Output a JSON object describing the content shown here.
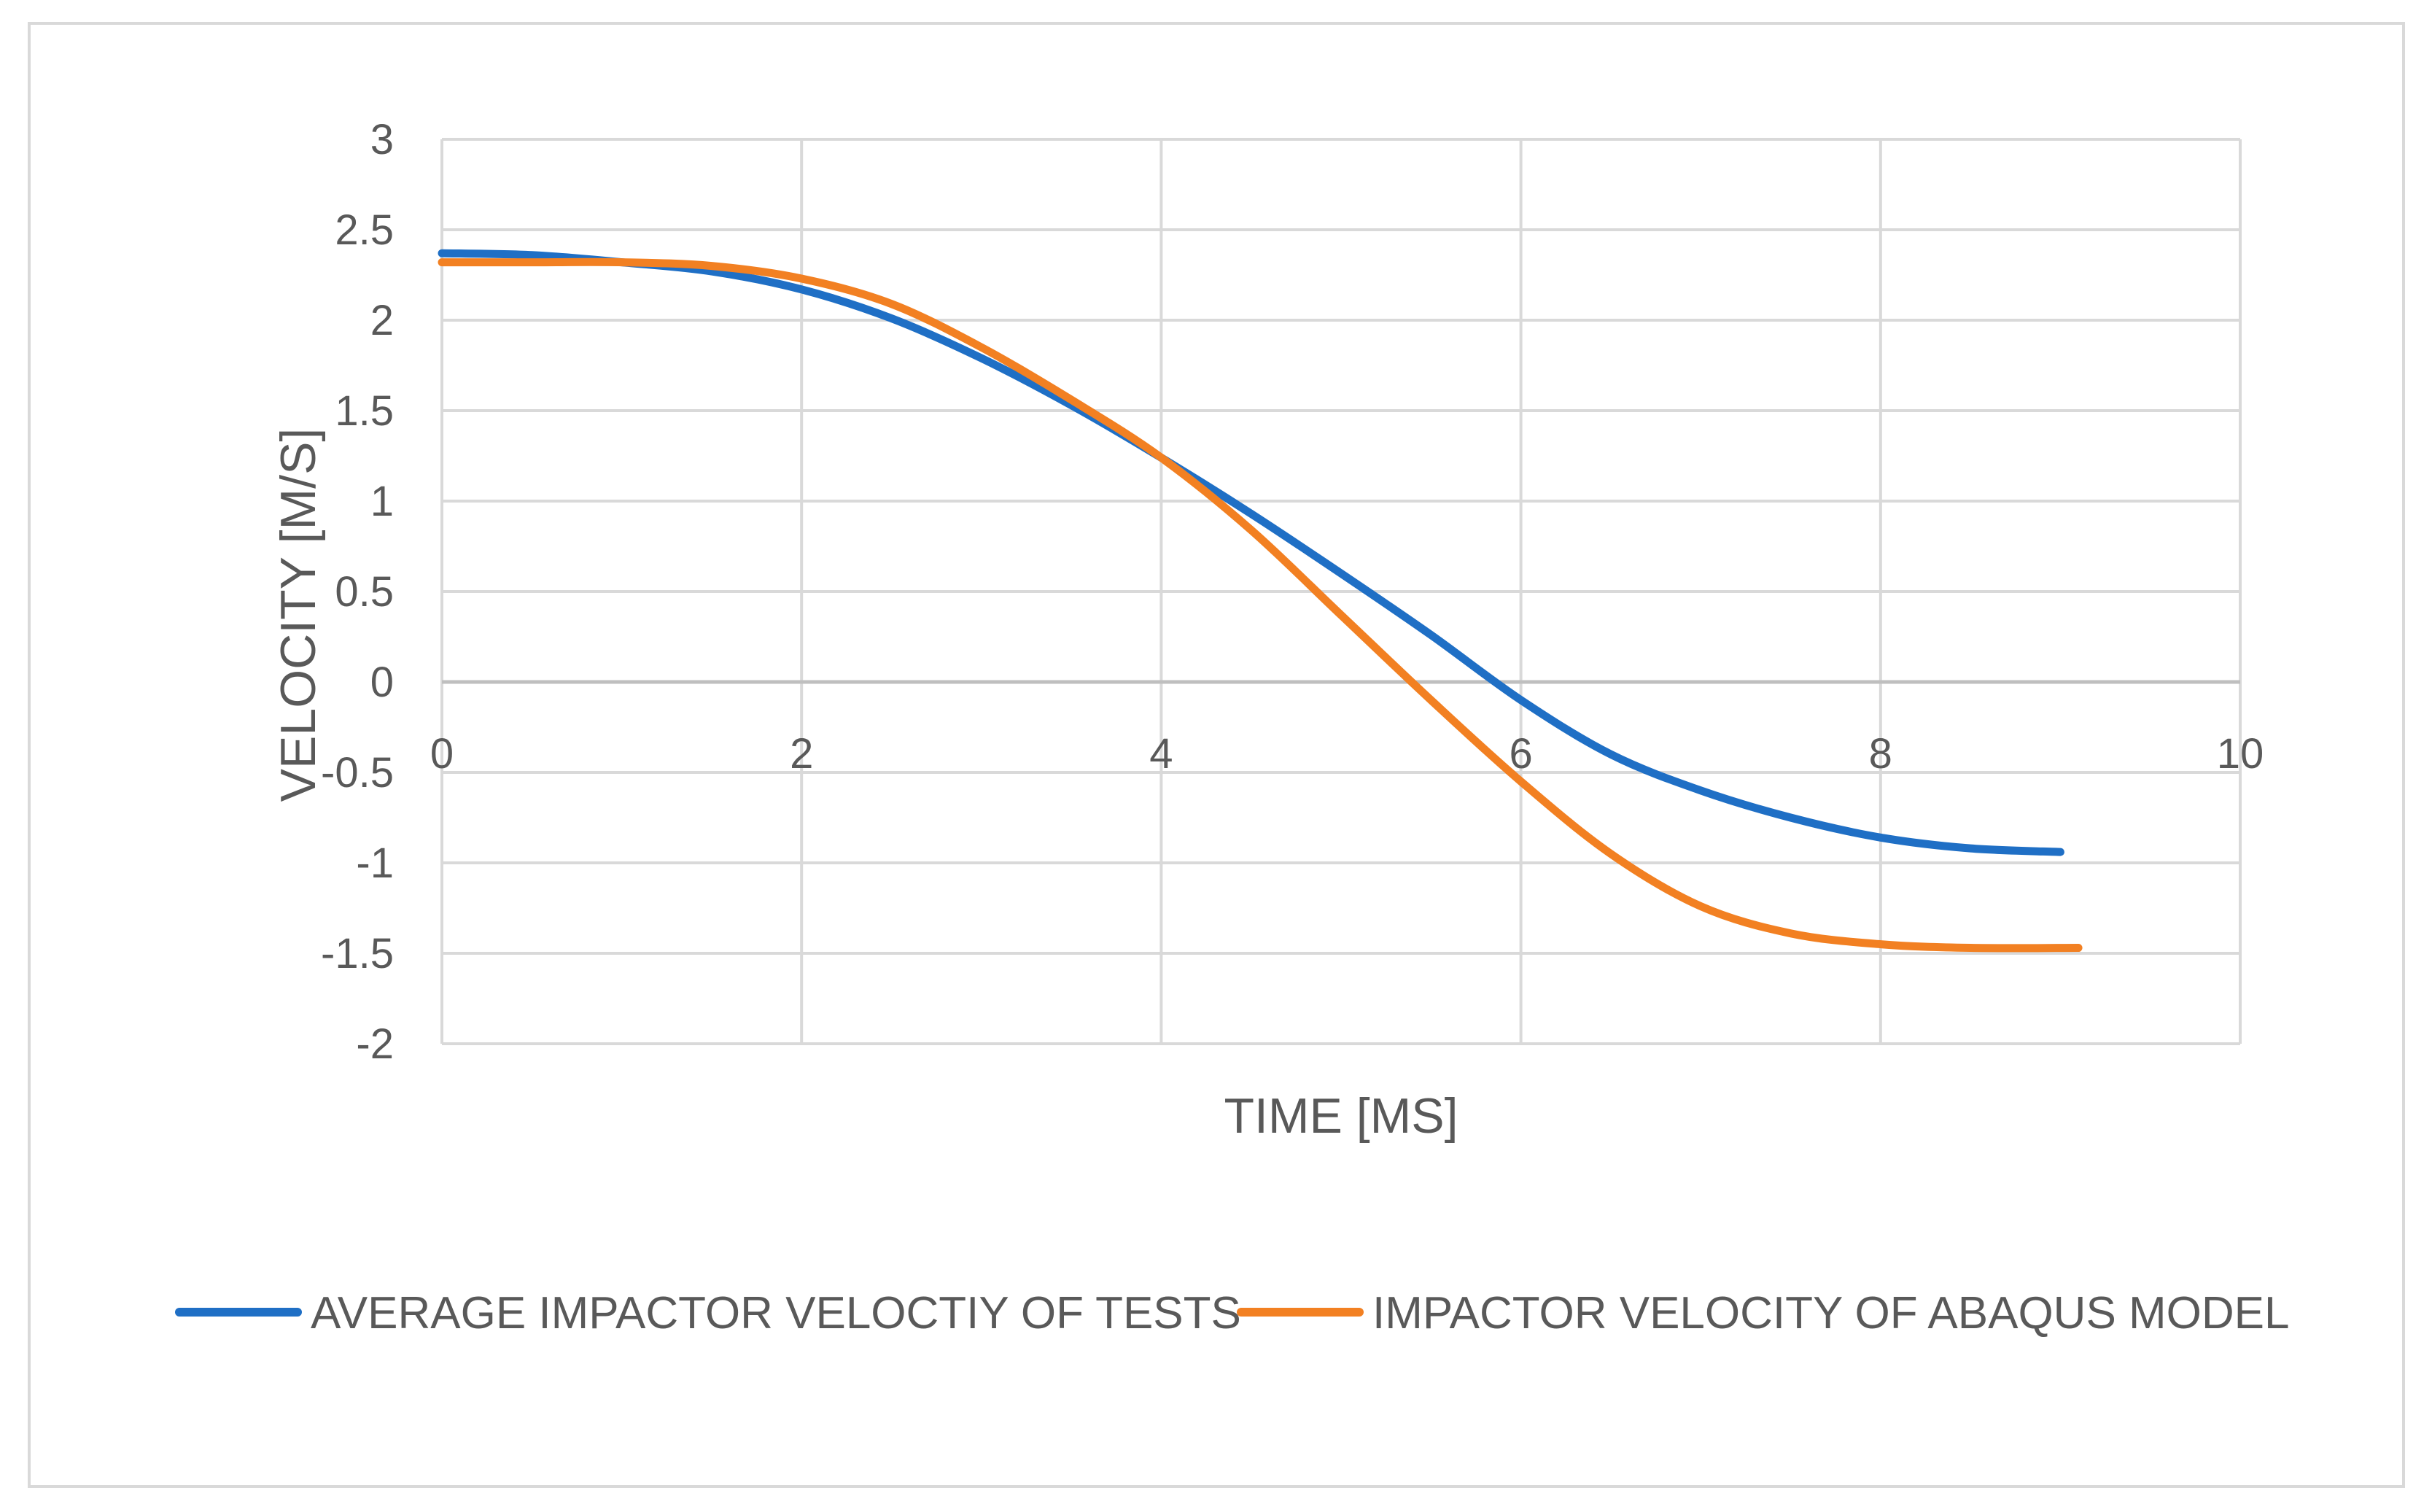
{
  "chart_data": {
    "type": "line",
    "title": "",
    "xlabel": "TIME [MS]",
    "ylabel": "VELOCITY [M/S]",
    "xlim": [
      0,
      10
    ],
    "ylim": [
      -2,
      3
    ],
    "x_ticks": [
      0,
      2,
      4,
      6,
      8,
      10
    ],
    "y_ticks": [
      -2,
      -1.5,
      -1,
      -0.5,
      0,
      0.5,
      1,
      1.5,
      2,
      2.5,
      3
    ],
    "grid": true,
    "legend_position": "bottom",
    "colors": {
      "grid": "#d9d9d9",
      "zero_axis": "#bfbfbf",
      "text": "#595959"
    },
    "series": [
      {
        "name": "AVERAGE IMPACTOR VELOCTIY OF TESTS",
        "color": "#1f6fc5",
        "x": [
          0,
          0.5,
          1,
          1.5,
          2,
          2.5,
          3,
          3.5,
          4,
          4.5,
          5,
          5.5,
          6,
          6.5,
          7,
          7.5,
          8,
          8.5,
          9
        ],
        "y": [
          2.37,
          2.36,
          2.32,
          2.27,
          2.17,
          2.01,
          1.79,
          1.53,
          1.24,
          0.93,
          0.6,
          0.26,
          -0.1,
          -0.4,
          -0.6,
          -0.75,
          -0.86,
          -0.92,
          -0.94
        ]
      },
      {
        "name": "IMPACTOR VELOCITY OF ABAQUS MODEL",
        "color": "#f28022",
        "x": [
          0,
          0.5,
          1,
          1.5,
          2,
          2.5,
          3,
          3.5,
          4,
          4.5,
          5,
          5.5,
          6,
          6.5,
          7,
          7.5,
          8,
          8.5,
          9.1
        ],
        "y": [
          2.32,
          2.32,
          2.32,
          2.3,
          2.23,
          2.09,
          1.85,
          1.56,
          1.24,
          0.84,
          0.37,
          -0.1,
          -0.55,
          -0.95,
          -1.24,
          -1.39,
          -1.45,
          -1.47,
          -1.47
        ]
      }
    ]
  }
}
